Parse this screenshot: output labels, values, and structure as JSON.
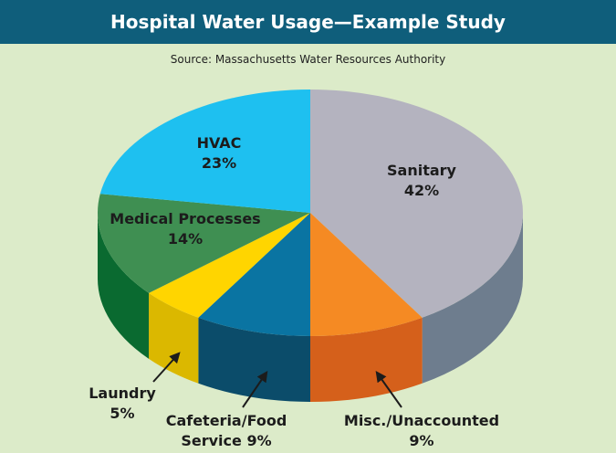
{
  "chart_data": {
    "type": "pie",
    "title": "Hospital Water Usage—Example Study",
    "subtitle": "Source: Massachusetts Water Resources Authority",
    "categories": [
      "Sanitary",
      "Misc./Unaccounted",
      "Cafeteria/Food Service",
      "Laundry",
      "Medical Processes",
      "HVAC"
    ],
    "values": [
      42,
      9,
      9,
      5,
      14,
      23
    ],
    "value_labels": [
      "42%",
      "9%",
      "9%",
      "5%",
      "14%",
      "23%"
    ],
    "colors": [
      "#b4b3bf",
      "#f58a23",
      "#0a74a2",
      "#ffd500",
      "#3f8f52",
      "#1ec0f0"
    ],
    "side_colors": [
      "#6e7d8e",
      "#d5601b",
      "#0b4c6a",
      "#dbb800",
      "#0a6a30",
      "#1495c0"
    ]
  }
}
